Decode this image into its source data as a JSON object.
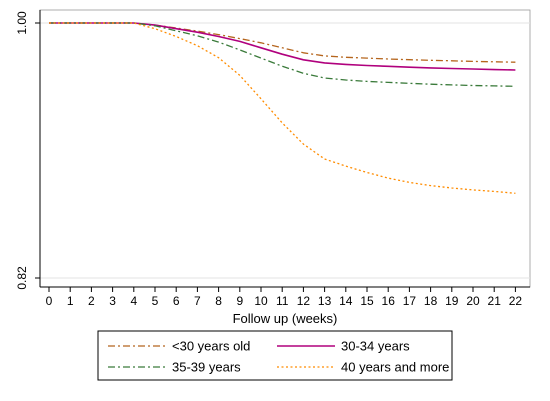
{
  "chart_data": {
    "type": "line",
    "title": "",
    "xlabel": "Follow up (weeks)",
    "ylabel": "",
    "xlim": [
      0,
      22
    ],
    "ylim": [
      0.82,
      1.0
    ],
    "x_ticks": [
      "0",
      "1",
      "2",
      "3",
      "4",
      "5",
      "6",
      "7",
      "8",
      "9",
      "10",
      "11",
      "12",
      "13",
      "14",
      "15",
      "16",
      "17",
      "18",
      "19",
      "20",
      "21",
      "22"
    ],
    "y_ticks": [
      {
        "value": 1.0,
        "label": "1.00"
      },
      {
        "value": 0.82,
        "label": "0.82"
      }
    ],
    "grid": true,
    "legend_position": "bottom",
    "x": [
      0,
      1,
      2,
      3,
      4,
      5,
      6,
      7,
      8,
      9,
      10,
      11,
      12,
      13,
      14,
      15,
      16,
      17,
      18,
      19,
      20,
      21,
      22
    ],
    "series": [
      {
        "name": "<30 years old",
        "color": "#b5651d",
        "dash": "dash-dot",
        "values": [
          1.0,
          1.0,
          1.0,
          1.0,
          1.0,
          0.9985,
          0.9965,
          0.9943,
          0.9918,
          0.989,
          0.986,
          0.9825,
          0.979,
          0.9768,
          0.9758,
          0.9752,
          0.9746,
          0.9741,
          0.9737,
          0.9733,
          0.9729,
          0.9726,
          0.9723
        ]
      },
      {
        "name": "30-34 years",
        "color": "#b0007d",
        "dash": "solid",
        "values": [
          1.0,
          1.0,
          1.0,
          1.0,
          1.0,
          0.9985,
          0.996,
          0.9935,
          0.9905,
          0.987,
          0.9825,
          0.978,
          0.974,
          0.9718,
          0.9708,
          0.97,
          0.9694,
          0.9688,
          0.9683,
          0.9679,
          0.9675,
          0.9671,
          0.9668
        ]
      },
      {
        "name": "35-39 years",
        "color": "#3a7a3a",
        "dash": "dash-dot",
        "values": [
          1.0,
          1.0,
          1.0,
          1.0,
          1.0,
          0.998,
          0.9945,
          0.991,
          0.9865,
          0.981,
          0.9752,
          0.9695,
          0.9645,
          0.9612,
          0.9598,
          0.9588,
          0.9581,
          0.9574,
          0.9568,
          0.9563,
          0.9559,
          0.9556,
          0.9553
        ]
      },
      {
        "name": "40 years and more",
        "color": "#ff8c00",
        "dash": "dotted",
        "values": [
          1.0,
          1.0,
          1.0,
          1.0,
          1.0,
          0.996,
          0.9905,
          0.984,
          0.9755,
          0.963,
          0.9465,
          0.9295,
          0.9145,
          0.904,
          0.899,
          0.8945,
          0.8905,
          0.8875,
          0.8852,
          0.8835,
          0.8822,
          0.8811,
          0.8798
        ]
      }
    ]
  }
}
